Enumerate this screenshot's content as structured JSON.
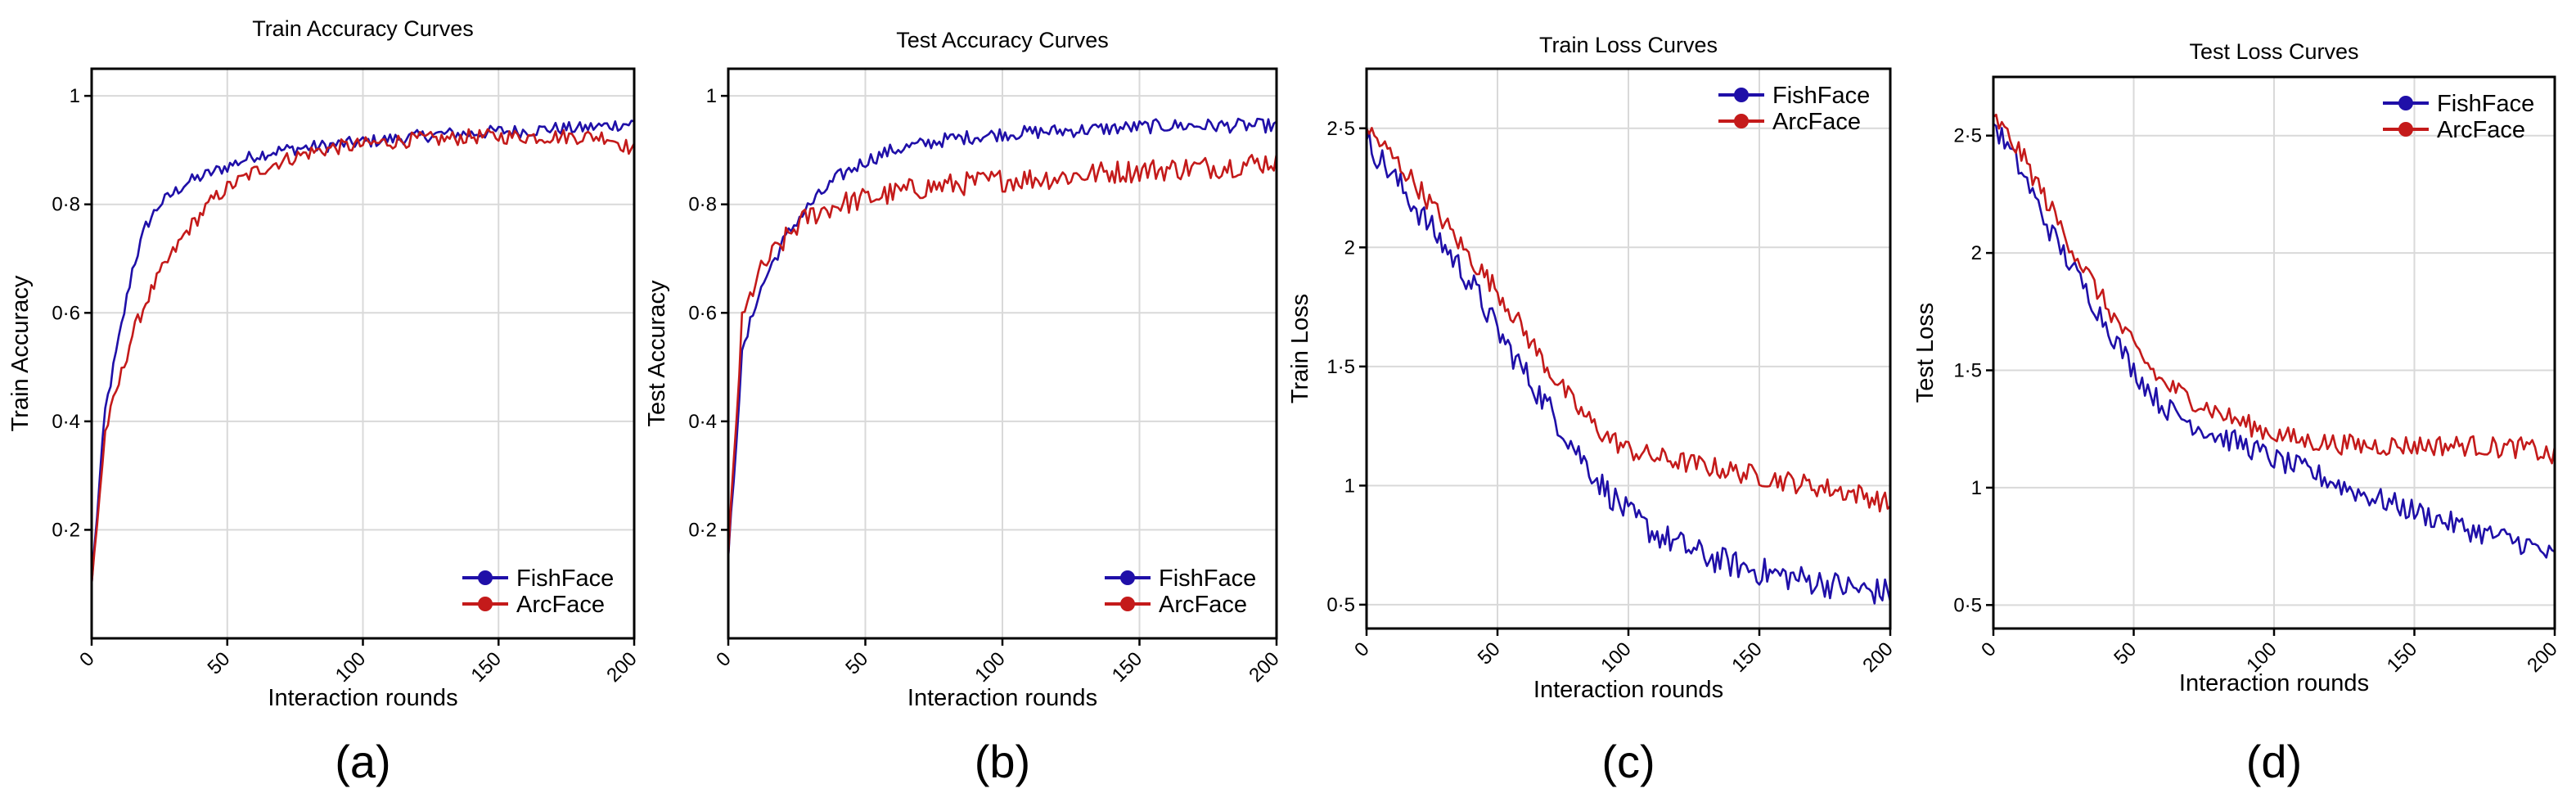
{
  "series_colors": {
    "FishFace": "#1f0fa8",
    "ArcFace": "#c41a1a"
  },
  "chart_data": [
    {
      "type": "line",
      "panel_label": "(a)",
      "title": "Train Accuracy Curves",
      "xlabel": "Interaction rounds",
      "ylabel": "Train Accuracy",
      "xlim": [
        0,
        200
      ],
      "ylim": [
        0,
        1.05
      ],
      "xticks": [
        0,
        50,
        100,
        150,
        200
      ],
      "xtick_labels": [
        "0",
        "50",
        "100",
        "150",
        "200"
      ],
      "yticks": [
        0.2,
        0.4,
        0.6,
        0.8,
        1.0
      ],
      "ytick_labels": [
        "0·2",
        "0·4",
        "0·6",
        "0·8",
        "1"
      ],
      "grid": true,
      "legend_position": "lower-right",
      "x": [
        0,
        5,
        10,
        15,
        20,
        25,
        30,
        35,
        40,
        45,
        50,
        60,
        70,
        80,
        90,
        100,
        110,
        120,
        130,
        140,
        150,
        160,
        170,
        180,
        190,
        200
      ],
      "series": [
        {
          "name": "FishFace",
          "noise": 0.012,
          "values": [
            0.1,
            0.42,
            0.55,
            0.68,
            0.76,
            0.8,
            0.82,
            0.84,
            0.85,
            0.86,
            0.87,
            0.89,
            0.9,
            0.905,
            0.91,
            0.915,
            0.92,
            0.925,
            0.93,
            0.93,
            0.935,
            0.935,
            0.94,
            0.94,
            0.945,
            0.95
          ]
        },
        {
          "name": "ArcFace",
          "noise": 0.014,
          "values": [
            0.1,
            0.38,
            0.47,
            0.56,
            0.62,
            0.67,
            0.71,
            0.75,
            0.78,
            0.81,
            0.83,
            0.86,
            0.88,
            0.895,
            0.905,
            0.91,
            0.915,
            0.92,
            0.92,
            0.925,
            0.925,
            0.925,
            0.925,
            0.925,
            0.925,
            0.9
          ]
        }
      ]
    },
    {
      "type": "line",
      "panel_label": "(b)",
      "title": "Test Accuracy Curves",
      "xlabel": "Interaction rounds",
      "ylabel": "Test Accuracy",
      "xlim": [
        0,
        200
      ],
      "ylim": [
        0,
        1.05
      ],
      "xticks": [
        0,
        50,
        100,
        150,
        200
      ],
      "xtick_labels": [
        "0",
        "50",
        "100",
        "150",
        "200"
      ],
      "yticks": [
        0.2,
        0.4,
        0.6,
        0.8,
        1.0
      ],
      "ytick_labels": [
        "0·2",
        "0·4",
        "0·6",
        "0·8",
        "1"
      ],
      "grid": true,
      "legend_position": "lower-right",
      "x": [
        0,
        5,
        10,
        15,
        20,
        25,
        30,
        40,
        50,
        60,
        70,
        80,
        90,
        100,
        120,
        140,
        160,
        180,
        200
      ],
      "series": [
        {
          "name": "FishFace",
          "noise": 0.013,
          "values": [
            0.15,
            0.52,
            0.62,
            0.68,
            0.73,
            0.77,
            0.8,
            0.85,
            0.88,
            0.9,
            0.91,
            0.92,
            0.925,
            0.93,
            0.935,
            0.94,
            0.945,
            0.945,
            0.945
          ]
        },
        {
          "name": "ArcFace",
          "noise": 0.022,
          "values": [
            0.15,
            0.58,
            0.66,
            0.7,
            0.73,
            0.76,
            0.78,
            0.8,
            0.81,
            0.82,
            0.83,
            0.835,
            0.84,
            0.845,
            0.85,
            0.86,
            0.865,
            0.87,
            0.88
          ]
        }
      ]
    },
    {
      "type": "line",
      "panel_label": "(c)",
      "title": "Train Loss Curves",
      "xlabel": "Interaction rounds",
      "ylabel": "Train Loss",
      "xlim": [
        0,
        200
      ],
      "ylim": [
        0.4,
        2.75
      ],
      "xticks": [
        0,
        50,
        100,
        150,
        200
      ],
      "xtick_labels": [
        "0",
        "50",
        "100",
        "150",
        "200"
      ],
      "yticks": [
        0.5,
        1.0,
        1.5,
        2.0,
        2.5
      ],
      "ytick_labels": [
        "0·5",
        "1",
        "1·5",
        "2",
        "2·5"
      ],
      "grid": true,
      "legend_position": "top-right",
      "x": [
        0,
        10,
        20,
        30,
        40,
        50,
        60,
        70,
        80,
        90,
        100,
        110,
        120,
        130,
        140,
        150,
        160,
        170,
        180,
        190,
        200
      ],
      "series": [
        {
          "name": "FishFace",
          "noise": 0.06,
          "values": [
            2.45,
            2.3,
            2.15,
            2.0,
            1.85,
            1.65,
            1.48,
            1.32,
            1.15,
            1.0,
            0.88,
            0.8,
            0.75,
            0.7,
            0.67,
            0.64,
            0.62,
            0.6,
            0.58,
            0.56,
            0.55
          ]
        },
        {
          "name": "ArcFace",
          "noise": 0.045,
          "values": [
            2.5,
            2.38,
            2.25,
            2.1,
            1.95,
            1.82,
            1.65,
            1.48,
            1.33,
            1.22,
            1.15,
            1.12,
            1.1,
            1.08,
            1.06,
            1.04,
            1.02,
            1.0,
            0.98,
            0.96,
            0.92
          ]
        }
      ]
    },
    {
      "type": "line",
      "panel_label": "(d)",
      "title": "Test Loss Curves",
      "xlabel": "Interaction rounds",
      "ylabel": "Test Loss",
      "xlim": [
        0,
        200
      ],
      "ylim": [
        0.4,
        2.75
      ],
      "xticks": [
        0,
        50,
        100,
        150,
        200
      ],
      "xtick_labels": [
        "0",
        "50",
        "100",
        "150",
        "200"
      ],
      "yticks": [
        0.5,
        1.0,
        1.5,
        2.0,
        2.5
      ],
      "ytick_labels": [
        "0·5",
        "1",
        "1·5",
        "2",
        "2·5"
      ],
      "grid": true,
      "legend_position": "top-right",
      "x": [
        0,
        10,
        20,
        30,
        40,
        50,
        60,
        70,
        80,
        90,
        100,
        110,
        120,
        130,
        140,
        150,
        160,
        170,
        180,
        190,
        200
      ],
      "series": [
        {
          "name": "FishFace",
          "noise": 0.05,
          "values": [
            2.55,
            2.35,
            2.1,
            1.9,
            1.7,
            1.5,
            1.35,
            1.28,
            1.22,
            1.18,
            1.12,
            1.08,
            1.03,
            0.98,
            0.94,
            0.9,
            0.86,
            0.82,
            0.79,
            0.76,
            0.7
          ]
        },
        {
          "name": "ArcFace",
          "noise": 0.045,
          "values": [
            2.58,
            2.42,
            2.2,
            1.98,
            1.78,
            1.6,
            1.45,
            1.38,
            1.32,
            1.27,
            1.23,
            1.2,
            1.19,
            1.18,
            1.18,
            1.18,
            1.18,
            1.18,
            1.17,
            1.17,
            1.13
          ]
        }
      ]
    }
  ]
}
